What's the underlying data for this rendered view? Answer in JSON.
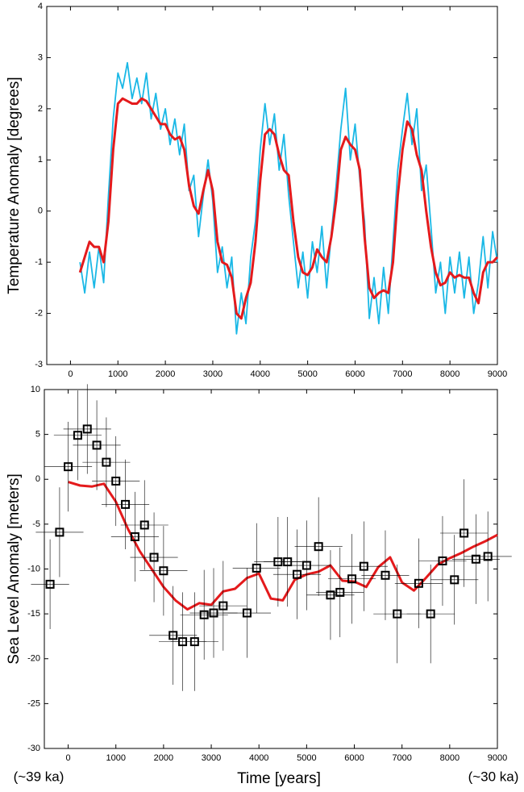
{
  "chart_data": [
    {
      "type": "line",
      "ylabel": "Temperature Anomaly [degrees]",
      "xlim": [
        -500,
        9000
      ],
      "ylim": [
        -3,
        4
      ],
      "xticks": [
        0,
        1000,
        2000,
        3000,
        4000,
        5000,
        6000,
        7000,
        8000,
        9000
      ],
      "yticks": [
        -3,
        -2,
        -1,
        0,
        1,
        2,
        3,
        4
      ],
      "x": [
        200,
        300,
        400,
        500,
        600,
        700,
        800,
        900,
        1000,
        1100,
        1200,
        1300,
        1400,
        1500,
        1600,
        1700,
        1800,
        1900,
        2000,
        2100,
        2200,
        2300,
        2400,
        2500,
        2600,
        2700,
        2800,
        2900,
        3000,
        3100,
        3200,
        3300,
        3400,
        3500,
        3600,
        3700,
        3800,
        3900,
        4000,
        4100,
        4200,
        4300,
        4400,
        4500,
        4600,
        4700,
        4800,
        4900,
        5000,
        5100,
        5200,
        5300,
        5400,
        5500,
        5600,
        5700,
        5800,
        5900,
        6000,
        6100,
        6200,
        6300,
        6400,
        6500,
        6600,
        6700,
        6800,
        6900,
        7000,
        7100,
        7200,
        7300,
        7400,
        7500,
        7600,
        7700,
        7800,
        7900,
        8000,
        8100,
        8200,
        8300,
        8400,
        8500,
        8600,
        8700,
        8800,
        8900,
        9000
      ],
      "series": [
        {
          "color": "#1ab8e6",
          "width": 1.8,
          "values": [
            -1.0,
            -1.6,
            -0.8,
            -1.5,
            -0.7,
            -1.4,
            0.3,
            1.8,
            2.7,
            2.4,
            2.9,
            2.2,
            2.6,
            2.1,
            2.7,
            1.8,
            2.3,
            1.6,
            2.0,
            1.3,
            1.8,
            1.1,
            1.7,
            0.4,
            0.7,
            -0.5,
            0.3,
            1.0,
            0.2,
            -1.2,
            -0.7,
            -1.5,
            -0.9,
            -2.4,
            -1.6,
            -2.2,
            -0.9,
            -0.2,
            1.2,
            2.1,
            1.3,
            1.9,
            0.8,
            1.5,
            0.3,
            -0.6,
            -1.5,
            -0.8,
            -1.7,
            -0.6,
            -1.2,
            -0.3,
            -1.5,
            -0.4,
            0.5,
            1.6,
            2.4,
            1.0,
            1.7,
            0.6,
            -0.2,
            -2.1,
            -1.3,
            -2.2,
            -1.1,
            -2.0,
            -0.6,
            0.8,
            1.6,
            2.3,
            1.3,
            2.0,
            0.4,
            0.9,
            -0.3,
            -1.6,
            -1.0,
            -2.0,
            -0.9,
            -1.6,
            -0.8,
            -1.7,
            -0.9,
            -2.0,
            -1.4,
            -0.5,
            -1.5,
            -0.4,
            -1.0
          ]
        },
        {
          "color": "#e41a1c",
          "width": 3,
          "values": [
            -1.2,
            -0.9,
            -0.6,
            -0.7,
            -0.7,
            -1.0,
            -0.2,
            1.2,
            2.1,
            2.2,
            2.15,
            2.1,
            2.1,
            2.2,
            2.15,
            2.0,
            1.85,
            1.7,
            1.7,
            1.5,
            1.4,
            1.45,
            1.2,
            0.5,
            0.1,
            -0.05,
            0.4,
            0.8,
            0.4,
            -0.6,
            -1.0,
            -1.05,
            -1.3,
            -2.0,
            -2.1,
            -1.7,
            -1.4,
            -0.6,
            0.6,
            1.5,
            1.6,
            1.5,
            1.1,
            0.8,
            0.7,
            -0.2,
            -0.9,
            -1.2,
            -1.25,
            -1.1,
            -0.75,
            -0.9,
            -1.0,
            -0.5,
            0.2,
            1.2,
            1.45,
            1.3,
            1.2,
            0.8,
            -0.5,
            -1.5,
            -1.7,
            -1.6,
            -1.55,
            -1.6,
            -1.0,
            0.3,
            1.2,
            1.75,
            1.6,
            1.1,
            0.8,
            0.0,
            -0.7,
            -1.2,
            -1.45,
            -1.4,
            -1.2,
            -1.3,
            -1.25,
            -1.3,
            -1.3,
            -1.6,
            -1.8,
            -1.2,
            -1.0,
            -1.0,
            -0.9
          ]
        }
      ]
    },
    {
      "type": "line",
      "ylabel": "Sea Level Anomaly  [meters]",
      "xlabel": "Time [years]",
      "annotations": [
        "(~39 ka)",
        "(~30 ka)"
      ],
      "xlim": [
        -500,
        9000
      ],
      "ylim": [
        -30,
        10
      ],
      "xticks": [
        0,
        1000,
        2000,
        3000,
        4000,
        5000,
        6000,
        7000,
        8000,
        9000
      ],
      "yticks": [
        -30,
        -25,
        -20,
        -15,
        -10,
        -5,
        0,
        5,
        10
      ],
      "series": [
        {
          "kind": "line",
          "color": "#e41a1c",
          "width": 3,
          "x": [
            0,
            250,
            500,
            750,
            1000,
            1250,
            1500,
            1750,
            2000,
            2250,
            2500,
            2750,
            3000,
            3250,
            3500,
            3750,
            4000,
            4250,
            4500,
            4750,
            5000,
            5250,
            5500,
            5750,
            6000,
            6250,
            6500,
            6750,
            7000,
            7250,
            7500,
            7750,
            8000,
            8250,
            8500,
            8750,
            9000
          ],
          "values": [
            -0.3,
            -0.7,
            -0.8,
            -0.5,
            -2.5,
            -5.5,
            -8,
            -10,
            -12,
            -13.5,
            -14.5,
            -13.8,
            -14,
            -12.5,
            -12.2,
            -11,
            -10.5,
            -13.3,
            -13.5,
            -11.2,
            -10.6,
            -10.3,
            -9.6,
            -11.3,
            -11.4,
            -12,
            -9.8,
            -8.7,
            -11.5,
            -12.4,
            -11,
            -9.5,
            -8.8,
            -8.2,
            -7.5,
            -6.9,
            -6.2
          ]
        },
        {
          "kind": "points",
          "color": "#000000",
          "x": [
            -380,
            -180,
            0,
            200,
            400,
            600,
            800,
            1000,
            1200,
            1400,
            1600,
            1800,
            2000,
            2200,
            2400,
            2650,
            2850,
            3050,
            3250,
            3750,
            3950,
            4400,
            4600,
            4800,
            5000,
            5250,
            5500,
            5700,
            5950,
            6200,
            6650,
            6900,
            7350,
            7600,
            7850,
            8100,
            8300,
            8550,
            8800
          ],
          "values": [
            -11.7,
            -5.9,
            1.4,
            4.9,
            5.6,
            3.8,
            1.9,
            -0.2,
            -2.8,
            -6.4,
            -5.1,
            -8.7,
            -10.2,
            -17.4,
            -18.1,
            -18.1,
            -15.1,
            -14.9,
            -14.1,
            -14.9,
            -9.9,
            -9.2,
            -9.2,
            -10.6,
            -9.6,
            -7.5,
            -12.9,
            -12.6,
            -11.1,
            -9.7,
            -10.7,
            -15.0,
            -11.6,
            -15.0,
            -9.1,
            -11.2,
            -6.0,
            -8.9,
            -8.6
          ],
          "xerr": [
            400,
            500,
            500,
            500,
            500,
            500,
            500,
            500,
            500,
            500,
            500,
            500,
            500,
            500,
            500,
            500,
            500,
            500,
            500,
            500,
            500,
            500,
            500,
            500,
            500,
            500,
            500,
            500,
            500,
            500,
            500,
            500,
            500,
            500,
            500,
            500,
            500,
            500,
            500
          ],
          "yerr": [
            5,
            5,
            5,
            5,
            5,
            5,
            5,
            5,
            5,
            5,
            5,
            5,
            5,
            5.5,
            5.5,
            5.5,
            5,
            5,
            5,
            5,
            5,
            5,
            5,
            5,
            5,
            5.5,
            5,
            5,
            5,
            5,
            5,
            5.5,
            5,
            5.5,
            5,
            5,
            6,
            5,
            5
          ]
        }
      ]
    }
  ]
}
